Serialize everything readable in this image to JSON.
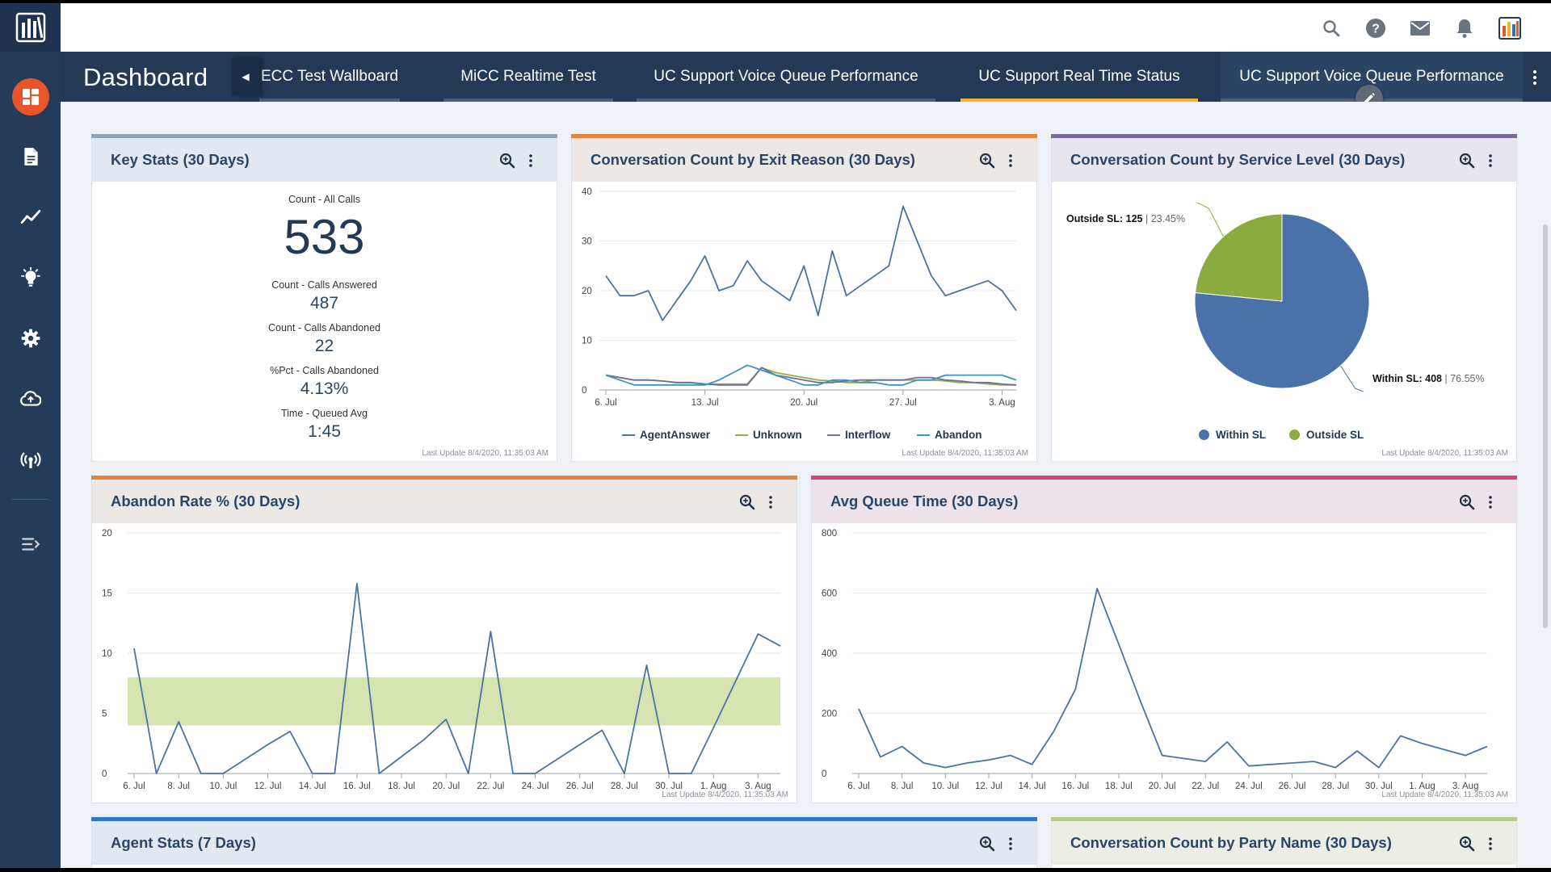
{
  "header": {
    "icons": [
      "search-icon",
      "help-icon",
      "mail-icon",
      "bell-icon",
      "app-logo-icon"
    ]
  },
  "sidebar": {
    "items": [
      "dashboard-icon",
      "document-icon",
      "trend-icon",
      "lightbulb-icon",
      "gear-icon",
      "cloud-upload-icon",
      "broadcast-icon",
      "expand-menu-icon"
    ]
  },
  "tabbar": {
    "title": "Dashboard",
    "tabs": [
      {
        "label": "ECC Test Wallboard",
        "active": false
      },
      {
        "label": "MiCC Realtime Test",
        "active": false
      },
      {
        "label": "UC Support Voice Queue Performance",
        "active": false
      },
      {
        "label": "UC Support Real Time Status",
        "active": true
      },
      {
        "label": "UC Support Voice Queue Performance",
        "active": false
      }
    ]
  },
  "colors": {
    "accent_blue": "#4a72a8",
    "accent_green": "#8aab3e",
    "accent_orange": "#e8823b",
    "accent_purple": "#7b6a9e",
    "accent_pink": "#d04677",
    "accent_lightblue": "#2d79c7",
    "accent_lime": "#b8cc8a",
    "line_agentanswer": "#4a72a8",
    "line_unknown": "#98ad3f",
    "line_interflow": "#6b6fa0",
    "line_abandon": "#3a96b8",
    "band": "#d6e5b0"
  },
  "panels": {
    "key_stats": {
      "title": "Key Stats (30 Days)",
      "stats": [
        {
          "label": "Count - All Calls",
          "value": "533"
        },
        {
          "label": "Count - Calls Answered",
          "value": "487"
        },
        {
          "label": "Count - Calls Abandoned",
          "value": "22"
        },
        {
          "label": "%Pct - Calls Abandoned",
          "value": "4.13%"
        },
        {
          "label": "Time - Queued Avg",
          "value": "1:45"
        }
      ],
      "last_update": "Last Update 8/4/2020, 11:35:03 AM"
    },
    "exit_reason": {
      "title": "Conversation Count by Exit Reason (30 Days)",
      "last_update": "Last Update 8/4/2020, 11:35:03 AM"
    },
    "service_level": {
      "title": "Conversation Count by Service Level (30 Days)",
      "outside_label": "Outside SL: 125",
      "outside_pct": "23.45%",
      "within_label": "Within SL: 408",
      "within_pct": "76.55%",
      "last_update": "Last Update 8/4/2020, 11:35:03 AM"
    },
    "abandon_rate": {
      "title": "Abandon Rate % (30 Days)",
      "last_update": "Last Update 8/4/2020, 11:35:03 AM"
    },
    "avg_queue": {
      "title": "Avg Queue Time (30 Days)",
      "last_update": "Last Update 8/4/2020, 11:35:03 AM"
    },
    "agent_stats": {
      "title": "Agent Stats (7 Days)"
    },
    "party_name": {
      "title": "Conversation Count by Party Name (30 Days)"
    }
  },
  "chart_data": [
    {
      "type": "line",
      "x": [
        "6. Jul",
        "7. Jul",
        "8. Jul",
        "9. Jul",
        "10. Jul",
        "11. Jul",
        "12. Jul",
        "13. Jul",
        "14. Jul",
        "15. Jul",
        "16. Jul",
        "17. Jul",
        "18. Jul",
        "19. Jul",
        "20. Jul",
        "21. Jul",
        "22. Jul",
        "23. Jul",
        "24. Jul",
        "25. Jul",
        "26. Jul",
        "27. Jul",
        "28. Jul",
        "29. Jul",
        "30. Jul",
        "31. Jul",
        "1. Aug",
        "2. Aug",
        "3. Aug",
        "4. Aug"
      ],
      "xticks": [
        "6. Jul",
        "13. Jul",
        "20. Jul",
        "27. Jul",
        "3. Aug"
      ],
      "yticks": [
        0,
        10,
        20,
        30,
        40
      ],
      "ylim": [
        0,
        40
      ],
      "series": [
        {
          "name": "AgentAnswer",
          "values": [
            23,
            19,
            19,
            20,
            14,
            18,
            22,
            27,
            20,
            21,
            26,
            22,
            20,
            18,
            25,
            15,
            28,
            19,
            21,
            23,
            25,
            37,
            30,
            23,
            19,
            20,
            21,
            22,
            20,
            16
          ]
        },
        {
          "name": "Unknown",
          "values": [
            3,
            2.5,
            2,
            2,
            1.8,
            1.5,
            1.5,
            1.2,
            1.2,
            1.2,
            1.2,
            4.5,
            3.5,
            3,
            2.5,
            2,
            1.8,
            1.5,
            1.5,
            2,
            2,
            2,
            2,
            2,
            1.8,
            1.5,
            1.5,
            1.2,
            1,
            1
          ]
        },
        {
          "name": "Interflow",
          "values": [
            3,
            2.5,
            2,
            2,
            1.8,
            1.5,
            1.5,
            1.2,
            1,
            1,
            1,
            4.5,
            3,
            2.5,
            2,
            1.5,
            1.5,
            1.8,
            2,
            2,
            2,
            2,
            2.5,
            2.5,
            2,
            1.8,
            1.5,
            1.5,
            1.2,
            1
          ]
        },
        {
          "name": "Abandon",
          "values": [
            3,
            2,
            1,
            1,
            1,
            1,
            1,
            1,
            2,
            3.5,
            5,
            4,
            3,
            2,
            1,
            1,
            2,
            2,
            1.5,
            1.5,
            1,
            1,
            2,
            2,
            3,
            3,
            3,
            3,
            3,
            2
          ]
        }
      ]
    },
    {
      "type": "pie",
      "labels": [
        "Within SL",
        "Outside SL"
      ],
      "values": [
        408,
        125
      ],
      "percents": [
        76.55,
        23.45
      ]
    },
    {
      "type": "line",
      "x": [
        "6. Jul",
        "7. Jul",
        "8. Jul",
        "9. Jul",
        "10. Jul",
        "11. Jul",
        "12. Jul",
        "13. Jul",
        "14. Jul",
        "15. Jul",
        "16. Jul",
        "17. Jul",
        "18. Jul",
        "19. Jul",
        "20. Jul",
        "21. Jul",
        "22. Jul",
        "23. Jul",
        "24. Jul",
        "25. Jul",
        "26. Jul",
        "27. Jul",
        "28. Jul",
        "29. Jul",
        "30. Jul",
        "31. Jul",
        "1. Aug",
        "2. Aug",
        "3. Aug",
        "4. Aug"
      ],
      "xticks": [
        "6. Jul",
        "8. Jul",
        "10. Jul",
        "12. Jul",
        "14. Jul",
        "16. Jul",
        "18. Jul",
        "20. Jul",
        "22. Jul",
        "24. Jul",
        "26. Jul",
        "28. Jul",
        "30. Jul",
        "1. Aug",
        "3. Aug"
      ],
      "yticks": [
        0,
        5,
        10,
        15,
        20
      ],
      "ylim": [
        0,
        20
      ],
      "band": [
        4,
        8
      ],
      "series": [
        {
          "name": "Abandon Rate",
          "values": [
            10.4,
            0,
            4.3,
            0,
            0,
            1.2,
            2.4,
            3.5,
            0,
            0,
            15.8,
            0,
            1.4,
            2.8,
            4.5,
            0,
            11.8,
            0,
            0,
            1.2,
            2.4,
            3.6,
            0,
            9,
            0,
            0,
            3.8,
            7.7,
            11.6,
            10.6
          ]
        }
      ]
    },
    {
      "type": "line",
      "x": [
        "6. Jul",
        "7. Jul",
        "8. Jul",
        "9. Jul",
        "10. Jul",
        "11. Jul",
        "12. Jul",
        "13. Jul",
        "14. Jul",
        "15. Jul",
        "16. Jul",
        "17. Jul",
        "18. Jul",
        "19. Jul",
        "20. Jul",
        "21. Jul",
        "22. Jul",
        "23. Jul",
        "24. Jul",
        "25. Jul",
        "26. Jul",
        "27. Jul",
        "28. Jul",
        "29. Jul",
        "30. Jul",
        "31. Jul",
        "1. Aug",
        "2. Aug",
        "3. Aug",
        "4. Aug"
      ],
      "xticks": [
        "6. Jul",
        "8. Jul",
        "10. Jul",
        "12. Jul",
        "14. Jul",
        "16. Jul",
        "18. Jul",
        "20. Jul",
        "22. Jul",
        "24. Jul",
        "26. Jul",
        "28. Jul",
        "30. Jul",
        "1. Aug",
        "3. Aug"
      ],
      "yticks": [
        0,
        200,
        400,
        600,
        800
      ],
      "ylim": [
        0,
        800
      ],
      "series": [
        {
          "name": "Avg Queue Time",
          "values": [
            215,
            55,
            90,
            35,
            20,
            35,
            45,
            60,
            30,
            140,
            280,
            615,
            430,
            240,
            60,
            50,
            40,
            105,
            25,
            30,
            35,
            40,
            20,
            75,
            20,
            125,
            100,
            80,
            60,
            90
          ]
        }
      ]
    }
  ]
}
